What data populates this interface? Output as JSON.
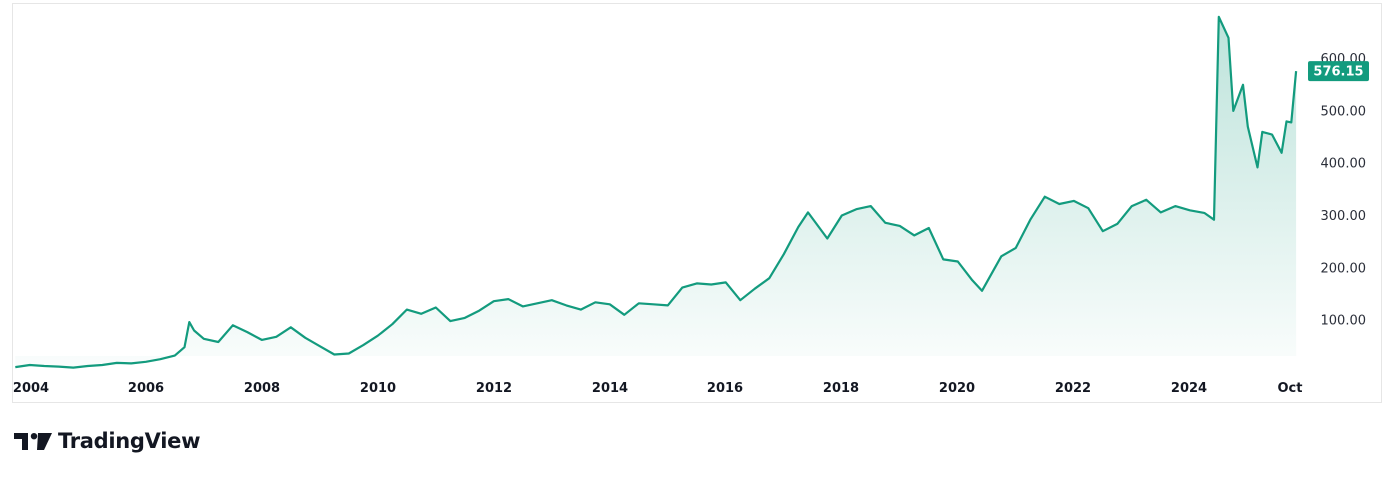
{
  "brand": {
    "name": "TradingView",
    "logo_icon": "tradingview-logo-icon"
  },
  "colors": {
    "line": "#139b7e",
    "area_top": "#139b7e",
    "last_badge": "#139b7e",
    "text": "#131722"
  },
  "chart_data": {
    "type": "area",
    "title": "",
    "xlabel": "",
    "ylabel": "",
    "x_tick_labels": [
      "2004",
      "2006",
      "2008",
      "2010",
      "2012",
      "2014",
      "2016",
      "2018",
      "2020",
      "2022",
      "2024",
      "Oct"
    ],
    "y_tick_labels": [
      "100.00",
      "200.00",
      "300.00",
      "400.00",
      "500.00",
      "600.00"
    ],
    "ylim": [
      -10,
      690
    ],
    "grid": false,
    "last_value": "576.15",
    "series": [
      {
        "values": [
          {
            "x": "2003-09",
            "y": 10
          },
          {
            "x": "2003-12",
            "y": 14
          },
          {
            "x": "2004-03",
            "y": 12
          },
          {
            "x": "2004-06",
            "y": 11
          },
          {
            "x": "2004-09",
            "y": 9
          },
          {
            "x": "2004-12",
            "y": 12
          },
          {
            "x": "2005-03",
            "y": 14
          },
          {
            "x": "2005-06",
            "y": 18
          },
          {
            "x": "2005-09",
            "y": 17
          },
          {
            "x": "2005-12",
            "y": 20
          },
          {
            "x": "2006-03",
            "y": 25
          },
          {
            "x": "2006-06",
            "y": 32
          },
          {
            "x": "2006-08",
            "y": 48
          },
          {
            "x": "2006-09",
            "y": 96
          },
          {
            "x": "2006-10",
            "y": 80
          },
          {
            "x": "2006-12",
            "y": 64
          },
          {
            "x": "2007-03",
            "y": 58
          },
          {
            "x": "2007-06",
            "y": 90
          },
          {
            "x": "2007-09",
            "y": 77
          },
          {
            "x": "2007-12",
            "y": 62
          },
          {
            "x": "2008-03",
            "y": 68
          },
          {
            "x": "2008-06",
            "y": 86
          },
          {
            "x": "2008-09",
            "y": 66
          },
          {
            "x": "2008-12",
            "y": 50
          },
          {
            "x": "2009-03",
            "y": 34
          },
          {
            "x": "2009-06",
            "y": 36
          },
          {
            "x": "2009-09",
            "y": 52
          },
          {
            "x": "2009-12",
            "y": 70
          },
          {
            "x": "2010-03",
            "y": 92
          },
          {
            "x": "2010-06",
            "y": 120
          },
          {
            "x": "2010-09",
            "y": 112
          },
          {
            "x": "2010-12",
            "y": 124
          },
          {
            "x": "2011-03",
            "y": 98
          },
          {
            "x": "2011-06",
            "y": 104
          },
          {
            "x": "2011-09",
            "y": 118
          },
          {
            "x": "2011-12",
            "y": 136
          },
          {
            "x": "2012-03",
            "y": 140
          },
          {
            "x": "2012-06",
            "y": 126
          },
          {
            "x": "2012-09",
            "y": 132
          },
          {
            "x": "2012-12",
            "y": 138
          },
          {
            "x": "2013-03",
            "y": 128
          },
          {
            "x": "2013-06",
            "y": 120
          },
          {
            "x": "2013-09",
            "y": 134
          },
          {
            "x": "2013-12",
            "y": 130
          },
          {
            "x": "2014-03",
            "y": 110
          },
          {
            "x": "2014-06",
            "y": 132
          },
          {
            "x": "2014-09",
            "y": 130
          },
          {
            "x": "2014-12",
            "y": 128
          },
          {
            "x": "2015-03",
            "y": 162
          },
          {
            "x": "2015-06",
            "y": 170
          },
          {
            "x": "2015-09",
            "y": 168
          },
          {
            "x": "2015-12",
            "y": 172
          },
          {
            "x": "2016-03",
            "y": 138
          },
          {
            "x": "2016-06",
            "y": 160
          },
          {
            "x": "2016-09",
            "y": 180
          },
          {
            "x": "2016-12",
            "y": 226
          },
          {
            "x": "2017-03",
            "y": 278
          },
          {
            "x": "2017-05",
            "y": 306
          },
          {
            "x": "2017-09",
            "y": 256
          },
          {
            "x": "2017-12",
            "y": 300
          },
          {
            "x": "2018-03",
            "y": 312
          },
          {
            "x": "2018-06",
            "y": 318
          },
          {
            "x": "2018-09",
            "y": 286
          },
          {
            "x": "2018-12",
            "y": 280
          },
          {
            "x": "2019-03",
            "y": 262
          },
          {
            "x": "2019-06",
            "y": 276
          },
          {
            "x": "2019-09",
            "y": 216
          },
          {
            "x": "2019-12",
            "y": 212
          },
          {
            "x": "2020-03",
            "y": 176
          },
          {
            "x": "2020-05",
            "y": 156
          },
          {
            "x": "2020-09",
            "y": 222
          },
          {
            "x": "2020-12",
            "y": 238
          },
          {
            "x": "2021-03",
            "y": 292
          },
          {
            "x": "2021-06",
            "y": 336
          },
          {
            "x": "2021-09",
            "y": 322
          },
          {
            "x": "2021-12",
            "y": 328
          },
          {
            "x": "2022-03",
            "y": 314
          },
          {
            "x": "2022-06",
            "y": 270
          },
          {
            "x": "2022-09",
            "y": 284
          },
          {
            "x": "2022-12",
            "y": 318
          },
          {
            "x": "2023-03",
            "y": 330
          },
          {
            "x": "2023-06",
            "y": 306
          },
          {
            "x": "2023-09",
            "y": 318
          },
          {
            "x": "2023-12",
            "y": 310
          },
          {
            "x": "2024-03",
            "y": 305
          },
          {
            "x": "2024-05",
            "y": 292
          },
          {
            "x": "2024-06",
            "y": 680
          },
          {
            "x": "2024-08",
            "y": 640
          },
          {
            "x": "2024-09",
            "y": 500
          },
          {
            "x": "2024-11",
            "y": 550
          },
          {
            "x": "2024-12",
            "y": 470
          },
          {
            "x": "2025-02",
            "y": 392
          },
          {
            "x": "2025-03",
            "y": 460
          },
          {
            "x": "2025-05",
            "y": 455
          },
          {
            "x": "2025-07",
            "y": 420
          },
          {
            "x": "2025-08",
            "y": 480
          },
          {
            "x": "2025-09",
            "y": 478
          },
          {
            "x": "2025-10",
            "y": 576.15
          }
        ]
      }
    ]
  }
}
